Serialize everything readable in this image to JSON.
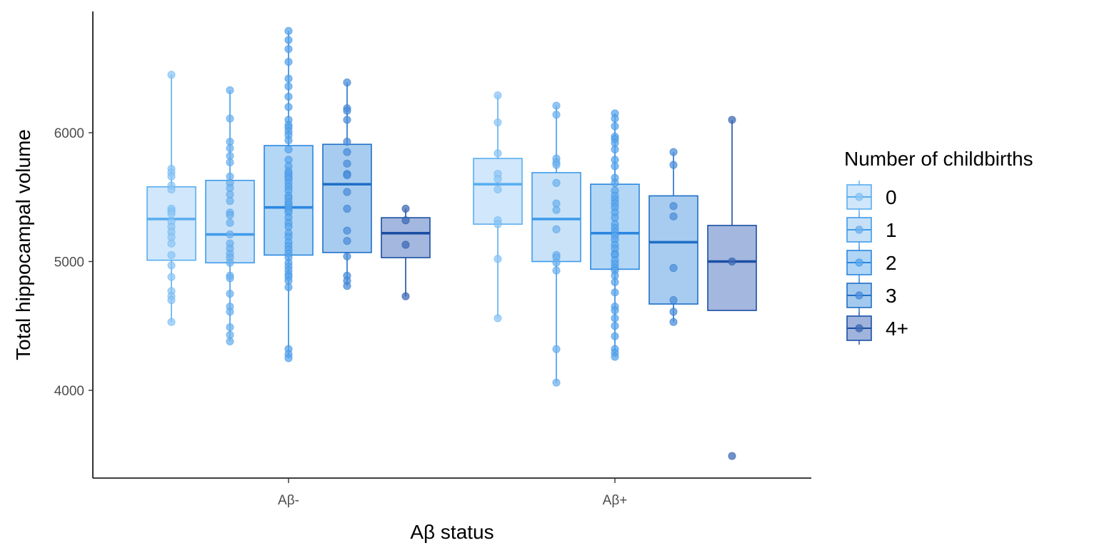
{
  "chart_data": {
    "type": "box",
    "title": "",
    "xlabel": "Aβ status",
    "ylabel": "Total hippocampal volume",
    "categories": [
      "Aβ-",
      "Aβ+"
    ],
    "yticks": [
      4000,
      5000,
      6000
    ],
    "ylim": [
      3400,
      6840
    ],
    "grid": false,
    "legend": {
      "title": "Number of childbirths",
      "position": "right"
    },
    "series": [
      {
        "name": "0",
        "fill": "#cfe6fb",
        "stroke": "#5aaeef",
        "point": "#8cc6f5",
        "boxes": [
          {
            "category": "Aβ-",
            "q1": 5010,
            "median": 5330,
            "q3": 5580,
            "whisker_low": 4530,
            "whisker_high": 6450,
            "points": [
              6450,
              5720,
              5690,
              5660,
              5590,
              5560,
              5410,
              5390,
              5370,
              5310,
              5270,
              5230,
              5190,
              5140,
              5050,
              4970,
              4880,
              4770,
              4730,
              4700,
              4530
            ]
          },
          {
            "category": "Aβ+",
            "q1": 5290,
            "median": 5600,
            "q3": 5800,
            "whisker_low": 4560,
            "whisker_high": 6290,
            "points": [
              6290,
              6080,
              5840,
              5680,
              5640,
              5560,
              5320,
              5290,
              5020,
              4560
            ]
          }
        ]
      },
      {
        "name": "1",
        "fill": "#c6e0f8",
        "stroke": "#3f9bea",
        "point": "#6fb2ee",
        "boxes": [
          {
            "category": "Aβ-",
            "q1": 4990,
            "median": 5210,
            "q3": 5630,
            "whisker_low": 4380,
            "whisker_high": 6330,
            "points": [
              6330,
              6110,
              5930,
              5880,
              5820,
              5770,
              5660,
              5610,
              5570,
              5520,
              5470,
              5380,
              5360,
              5300,
              5210,
              5140,
              5100,
              5060,
              5030,
              4990,
              4890,
              4870,
              4750,
              4650,
              4610,
              4490,
              4430,
              4380
            ]
          },
          {
            "category": "Aβ+",
            "q1": 5000,
            "median": 5330,
            "q3": 5690,
            "whisker_low": 4060,
            "whisker_high": 6210,
            "points": [
              6210,
              6140,
              5800,
              5770,
              5750,
              5610,
              5450,
              5400,
              5250,
              5050,
              5030,
              4990,
              4930,
              4320,
              4060
            ]
          }
        ]
      },
      {
        "name": "2",
        "fill": "#b0d5f6",
        "stroke": "#2a87e0",
        "point": "#5aa6ec",
        "boxes": [
          {
            "category": "Aβ-",
            "q1": 5050,
            "median": 5420,
            "q3": 5900,
            "whisker_low": 4250,
            "whisker_high": 6790,
            "points": [
              6790,
              6720,
              6650,
              6550,
              6420,
              6360,
              6280,
              6200,
              6100,
              6060,
              6040,
              6010,
              5980,
              5940,
              5870,
              5790,
              5740,
              5700,
              5680,
              5660,
              5640,
              5610,
              5580,
              5550,
              5510,
              5490,
              5460,
              5440,
              5420,
              5400,
              5380,
              5340,
              5300,
              5270,
              5220,
              5190,
              5150,
              5120,
              5090,
              5060,
              5030,
              4990,
              4960,
              4930,
              4900,
              4880,
              4850,
              4800,
              4320,
              4280,
              4250
            ]
          },
          {
            "category": "Aβ+",
            "q1": 4940,
            "median": 5220,
            "q3": 5600,
            "whisker_low": 4260,
            "whisker_high": 6150,
            "points": [
              6150,
              6110,
              6050,
              5970,
              5950,
              5920,
              5870,
              5790,
              5740,
              5650,
              5610,
              5550,
              5510,
              5480,
              5450,
              5420,
              5380,
              5340,
              5290,
              5260,
              5230,
              5200,
              5170,
              5130,
              5100,
              5060,
              5050,
              5010,
              4980,
              4950,
              4930,
              4890,
              4840,
              4760,
              4650,
              4620,
              4560,
              4500,
              4420,
              4320,
              4290,
              4260
            ]
          }
        ]
      },
      {
        "name": "3",
        "fill": "#a3c9ee",
        "stroke": "#1f6fc7",
        "point": "#4d8fdc",
        "boxes": [
          {
            "category": "Aβ-",
            "q1": 5070,
            "median": 5600,
            "q3": 5910,
            "whisker_low": 4810,
            "whisker_high": 6390,
            "points": [
              6390,
              6190,
              6170,
              6100,
              5930,
              5850,
              5760,
              5680,
              5670,
              5540,
              5410,
              5240,
              5160,
              5040,
              4890,
              4850,
              4810
            ]
          },
          {
            "category": "Aβ+",
            "q1": 4670,
            "median": 5150,
            "q3": 5510,
            "whisker_low": 4530,
            "whisker_high": 5850,
            "points": [
              5850,
              5750,
              5430,
              5350,
              4950,
              4700,
              4610,
              4530
            ]
          }
        ]
      },
      {
        "name": "4+",
        "fill": "#9fb3dc",
        "stroke": "#1a4fa3",
        "point": "#3f6ab6",
        "boxes": [
          {
            "category": "Aβ-",
            "q1": 5030,
            "median": 5220,
            "q3": 5340,
            "whisker_low": 4730,
            "whisker_high": 5410,
            "points": [
              5410,
              5320,
              5130,
              4730
            ]
          },
          {
            "category": "Aβ+",
            "q1": 4620,
            "median": 5000,
            "q3": 5280,
            "whisker_low": 4620,
            "whisker_high": 6100,
            "points": [
              6100,
              5000,
              3490
            ]
          }
        ]
      }
    ]
  }
}
